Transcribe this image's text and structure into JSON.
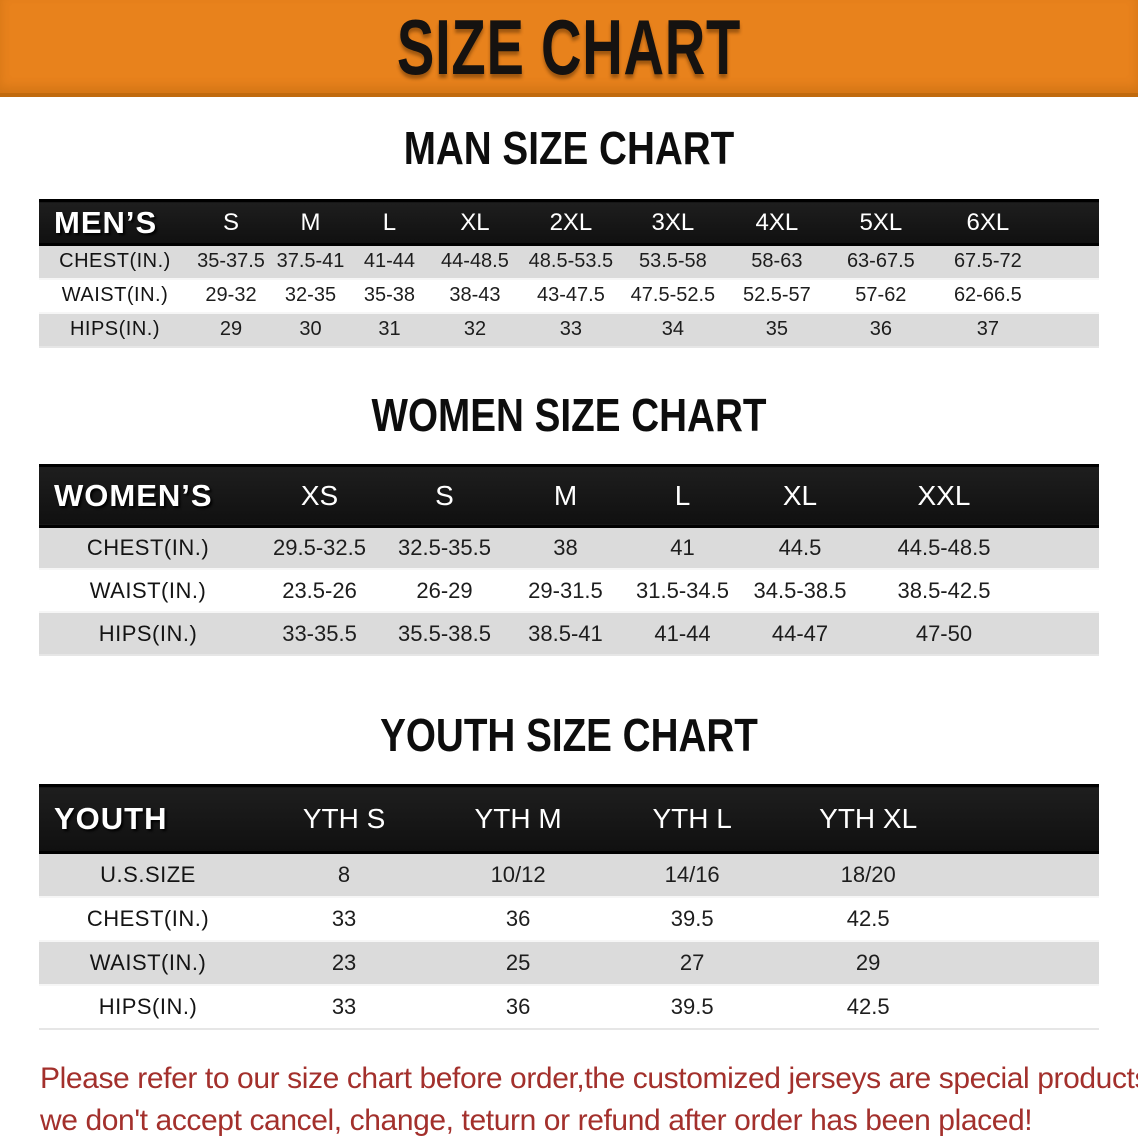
{
  "banner": {
    "title": "SIZE CHART"
  },
  "colors": {
    "banner_bg": "#E8821C",
    "banner_border": "#C06A0E",
    "header_bar_bg": "#161616",
    "row_alt_bg": "#DBDBDB",
    "disclaimer_red": "#A3302C"
  },
  "sections": [
    {
      "id": "men",
      "title": "MAN SIZE CHART",
      "table": {
        "group_label": "MEN’S",
        "columns": [
          "S",
          "M",
          "L",
          "XL",
          "2XL",
          "3XL",
          "4XL",
          "5XL",
          "6XL"
        ],
        "rows": [
          {
            "label": "CHEST(IN.)",
            "values": [
              "35-37.5",
              "37.5-41",
              "41-44",
              "44-48.5",
              "48.5-53.5",
              "53.5-58",
              "58-63",
              "63-67.5",
              "67.5-72"
            ]
          },
          {
            "label": "WAIST(IN.)",
            "values": [
              "29-32",
              "32-35",
              "35-38",
              "38-43",
              "43-47.5",
              "47.5-52.5",
              "52.5-57",
              "57-62",
              "62-66.5"
            ]
          },
          {
            "label": "HIPS(IN.)",
            "values": [
              "29",
              "30",
              "31",
              "32",
              "33",
              "34",
              "35",
              "36",
              "37"
            ]
          }
        ]
      }
    },
    {
      "id": "women",
      "title": "WOMEN SIZE CHART",
      "table": {
        "group_label": "WOMEN’S",
        "columns": [
          "XS",
          "S",
          "M",
          "L",
          "XL",
          "XXL"
        ],
        "rows": [
          {
            "label": "CHEST(IN.)",
            "values": [
              "29.5-32.5",
              "32.5-35.5",
              "38",
              "41",
              "44.5",
              "44.5-48.5"
            ]
          },
          {
            "label": "WAIST(IN.)",
            "values": [
              "23.5-26",
              "26-29",
              "29-31.5",
              "31.5-34.5",
              "34.5-38.5",
              "38.5-42.5"
            ]
          },
          {
            "label": "HIPS(IN.)",
            "values": [
              "33-35.5",
              "35.5-38.5",
              "38.5-41",
              "41-44",
              "44-47",
              "47-50"
            ]
          }
        ]
      }
    },
    {
      "id": "youth",
      "title": "YOUTH SIZE CHART",
      "table": {
        "group_label": "YOUTH",
        "columns": [
          "YTH S",
          "YTH M",
          "YTH L",
          "YTH XL"
        ],
        "rows": [
          {
            "label": "U.S.SIZE",
            "values": [
              "8",
              "10/12",
              "14/16",
              "18/20"
            ]
          },
          {
            "label": "CHEST(IN.)",
            "values": [
              "33",
              "36",
              "39.5",
              "42.5"
            ]
          },
          {
            "label": "WAIST(IN.)",
            "values": [
              "23",
              "25",
              "27",
              "29"
            ]
          },
          {
            "label": "HIPS(IN.)",
            "values": [
              "33",
              "36",
              "39.5",
              "42.5"
            ]
          }
        ]
      }
    }
  ],
  "disclaimer": {
    "line1": "Please refer to our size chart before order,the customized jerseys are special products,",
    "line2": "we don't accept cancel, change, teturn or refund after order has been placed!"
  }
}
